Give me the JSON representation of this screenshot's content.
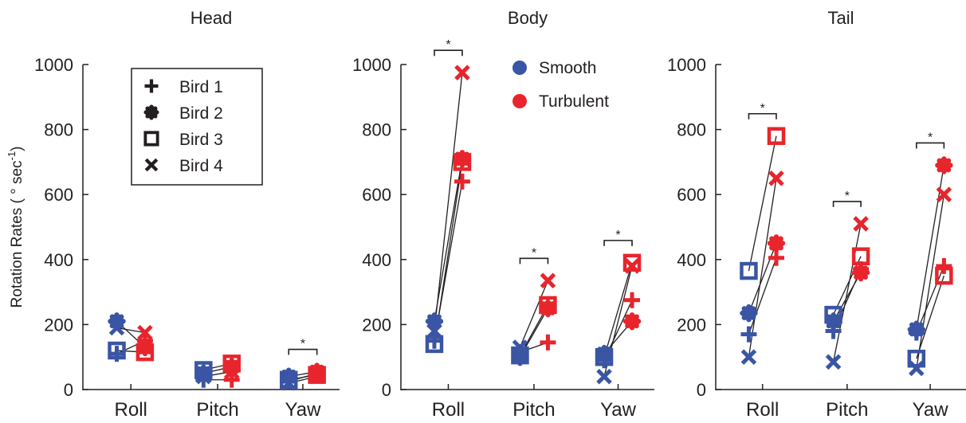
{
  "chart_data": {
    "type": "scatter",
    "ylabel": "Rotation Rates ( ° sec",
    "ylabel_superscript": "-1",
    "ylabel_close": ")",
    "ylim": [
      0,
      1000
    ],
    "yticks": [
      0,
      200,
      400,
      600,
      800,
      1000
    ],
    "categories": [
      "Roll",
      "Pitch",
      "Yaw"
    ],
    "conditions": [
      {
        "name": "Smooth",
        "color": "#3a55a4"
      },
      {
        "name": "Turbulent",
        "color": "#e8252c"
      }
    ],
    "birds": [
      {
        "name": "Bird 1",
        "marker": "plus"
      },
      {
        "name": "Bird 2",
        "marker": "dot"
      },
      {
        "name": "Bird 3",
        "marker": "square"
      },
      {
        "name": "Bird 4",
        "marker": "cross"
      }
    ],
    "grid": false,
    "legend_markers_placement": "top-left of Head panel",
    "legend_colors_placement": "top-right of Body panel",
    "panels": [
      {
        "title": "Head",
        "points": [
          {
            "category": "Roll",
            "bird": "Bird 1",
            "smooth": 110,
            "turbulent": 150
          },
          {
            "category": "Roll",
            "bird": "Bird 2",
            "smooth": 210,
            "turbulent": 130
          },
          {
            "category": "Roll",
            "bird": "Bird 3",
            "smooth": 120,
            "turbulent": 115
          },
          {
            "category": "Roll",
            "bird": "Bird 4",
            "smooth": 190,
            "turbulent": 175
          },
          {
            "category": "Pitch",
            "bird": "Bird 1",
            "smooth": 30,
            "turbulent": 30
          },
          {
            "category": "Pitch",
            "bird": "Bird 2",
            "smooth": 50,
            "turbulent": 70
          },
          {
            "category": "Pitch",
            "bird": "Bird 3",
            "smooth": 60,
            "turbulent": 80
          },
          {
            "category": "Pitch",
            "bird": "Bird 4",
            "smooth": 40,
            "turbulent": 55
          },
          {
            "category": "Yaw",
            "bird": "Bird 1",
            "smooth": 25,
            "turbulent": 50
          },
          {
            "category": "Yaw",
            "bird": "Bird 2",
            "smooth": 40,
            "turbulent": 55
          },
          {
            "category": "Yaw",
            "bird": "Bird 3",
            "smooth": 30,
            "turbulent": 45
          },
          {
            "category": "Yaw",
            "bird": "Bird 4",
            "smooth": 20,
            "turbulent": 40
          }
        ],
        "significance": [
          {
            "category": "Yaw",
            "label": "*"
          }
        ]
      },
      {
        "title": "Body",
        "points": [
          {
            "category": "Roll",
            "bird": "Bird 1",
            "smooth": 150,
            "turbulent": 640
          },
          {
            "category": "Roll",
            "bird": "Bird 2",
            "smooth": 210,
            "turbulent": 710
          },
          {
            "category": "Roll",
            "bird": "Bird 3",
            "smooth": 140,
            "turbulent": 700
          },
          {
            "category": "Roll",
            "bird": "Bird 4",
            "smooth": 180,
            "turbulent": 975
          },
          {
            "category": "Pitch",
            "bird": "Bird 1",
            "smooth": 115,
            "turbulent": 145
          },
          {
            "category": "Pitch",
            "bird": "Bird 2",
            "smooth": 100,
            "turbulent": 250
          },
          {
            "category": "Pitch",
            "bird": "Bird 3",
            "smooth": 105,
            "turbulent": 260
          },
          {
            "category": "Pitch",
            "bird": "Bird 4",
            "smooth": 130,
            "turbulent": 335
          },
          {
            "category": "Yaw",
            "bird": "Bird 1",
            "smooth": 90,
            "turbulent": 275
          },
          {
            "category": "Yaw",
            "bird": "Bird 2",
            "smooth": 110,
            "turbulent": 210
          },
          {
            "category": "Yaw",
            "bird": "Bird 3",
            "smooth": 100,
            "turbulent": 390
          },
          {
            "category": "Yaw",
            "bird": "Bird 4",
            "smooth": 40,
            "turbulent": 380
          }
        ],
        "significance": [
          {
            "category": "Roll",
            "label": "*"
          },
          {
            "category": "Pitch",
            "label": "*"
          },
          {
            "category": "Yaw",
            "label": "*"
          }
        ]
      },
      {
        "title": "Tail",
        "points": [
          {
            "category": "Roll",
            "bird": "Bird 1",
            "smooth": 170,
            "turbulent": 405
          },
          {
            "category": "Roll",
            "bird": "Bird 2",
            "smooth": 235,
            "turbulent": 450
          },
          {
            "category": "Roll",
            "bird": "Bird 3",
            "smooth": 365,
            "turbulent": 780
          },
          {
            "category": "Roll",
            "bird": "Bird 4",
            "smooth": 100,
            "turbulent": 650
          },
          {
            "category": "Pitch",
            "bird": "Bird 1",
            "smooth": 180,
            "turbulent": 370
          },
          {
            "category": "Pitch",
            "bird": "Bird 2",
            "smooth": 210,
            "turbulent": 360
          },
          {
            "category": "Pitch",
            "bird": "Bird 3",
            "smooth": 230,
            "turbulent": 410
          },
          {
            "category": "Pitch",
            "bird": "Bird 4",
            "smooth": 85,
            "turbulent": 510
          },
          {
            "category": "Yaw",
            "bird": "Bird 1",
            "smooth": 175,
            "turbulent": 380
          },
          {
            "category": "Yaw",
            "bird": "Bird 2",
            "smooth": 185,
            "turbulent": 690
          },
          {
            "category": "Yaw",
            "bird": "Bird 3",
            "smooth": 95,
            "turbulent": 350
          },
          {
            "category": "Yaw",
            "bird": "Bird 4",
            "smooth": 65,
            "turbulent": 600
          }
        ],
        "significance": [
          {
            "category": "Roll",
            "label": "*"
          },
          {
            "category": "Pitch",
            "label": "*"
          },
          {
            "category": "Yaw",
            "label": "*"
          }
        ]
      }
    ]
  }
}
